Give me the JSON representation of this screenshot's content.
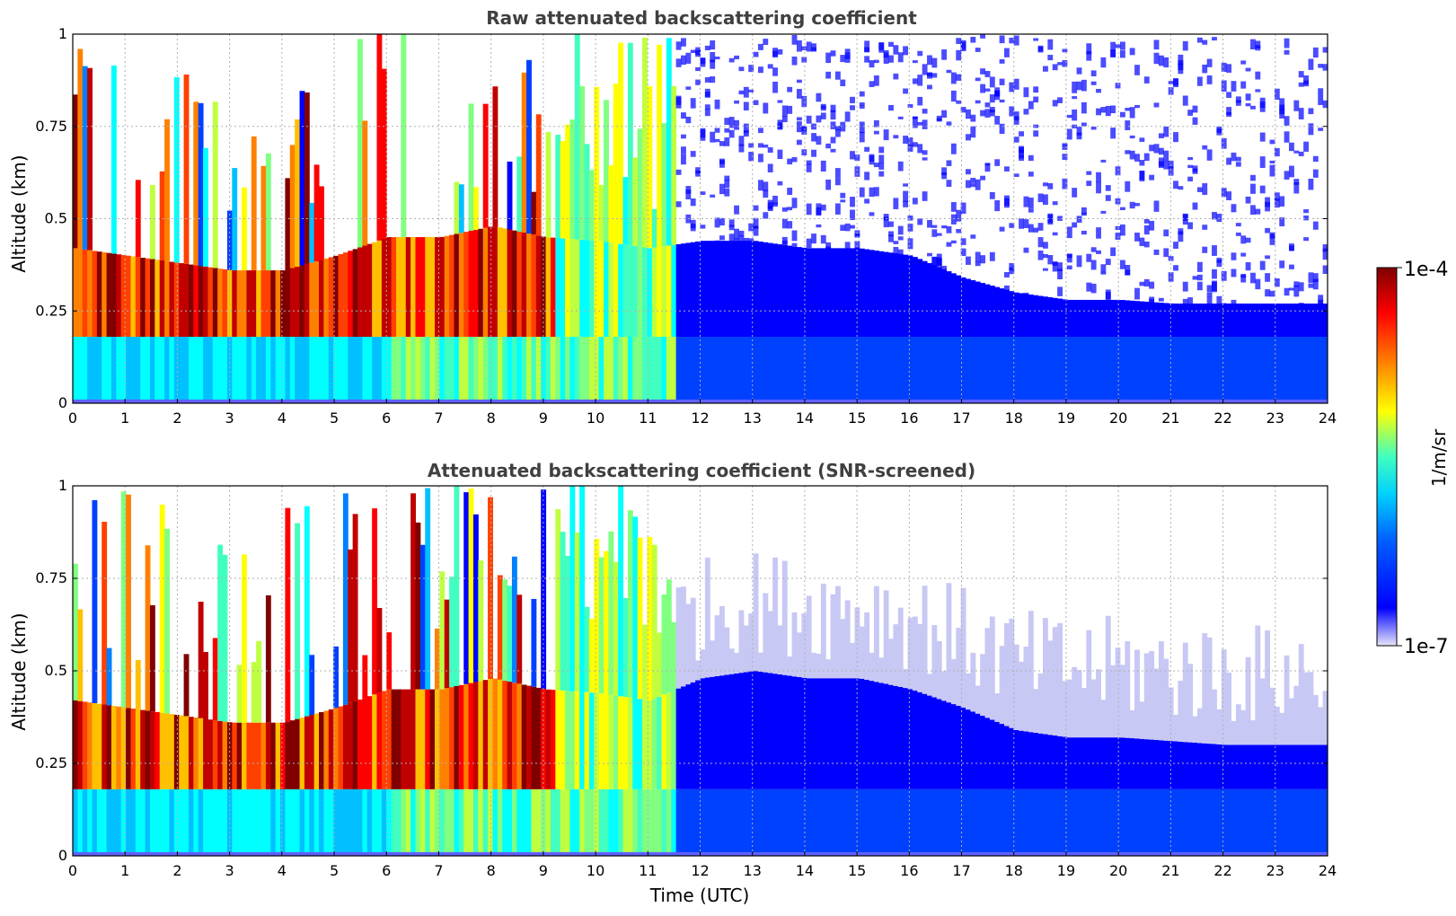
{
  "chart_data": [
    {
      "type": "heatmap",
      "title": "Raw attenuated backscattering coefficient",
      "xlabel": "",
      "ylabel": "Altitude (km)",
      "xlim": [
        0,
        24
      ],
      "ylim": [
        0,
        1
      ],
      "x_ticks": [
        "0",
        "1",
        "2",
        "3",
        "4",
        "5",
        "6",
        "7",
        "8",
        "9",
        "10",
        "11",
        "12",
        "13",
        "14",
        "15",
        "16",
        "17",
        "18",
        "19",
        "20",
        "21",
        "22",
        "23",
        "24"
      ],
      "y_ticks": [
        "0",
        "0.25",
        "0.5",
        "0.75",
        "1"
      ],
      "grid": true,
      "screened": false,
      "layer_top_km": [
        [
          0,
          0.42
        ],
        [
          1,
          0.4
        ],
        [
          2,
          0.38
        ],
        [
          3,
          0.36
        ],
        [
          4,
          0.36
        ],
        [
          5,
          0.4
        ],
        [
          6,
          0.45
        ],
        [
          7,
          0.45
        ],
        [
          8,
          0.48
        ],
        [
          9,
          0.45
        ],
        [
          10,
          0.44
        ],
        [
          11,
          0.42
        ],
        [
          12,
          0.44
        ],
        [
          13,
          0.44
        ],
        [
          14,
          0.42
        ],
        [
          15,
          0.42
        ],
        [
          16,
          0.4
        ],
        [
          17,
          0.34
        ],
        [
          18,
          0.3
        ],
        [
          19,
          0.28
        ],
        [
          20,
          0.28
        ],
        [
          21,
          0.27
        ],
        [
          22,
          0.27
        ],
        [
          23,
          0.27
        ],
        [
          24,
          0.27
        ]
      ]
    },
    {
      "type": "heatmap",
      "title": "Attenuated backscattering coefficient (SNR-screened)",
      "xlabel": "Time (UTC)",
      "ylabel": "Altitude (km)",
      "xlim": [
        0,
        24
      ],
      "ylim": [
        0,
        1
      ],
      "x_ticks": [
        "0",
        "1",
        "2",
        "3",
        "4",
        "5",
        "6",
        "7",
        "8",
        "9",
        "10",
        "11",
        "12",
        "13",
        "14",
        "15",
        "16",
        "17",
        "18",
        "19",
        "20",
        "21",
        "22",
        "23",
        "24"
      ],
      "y_ticks": [
        "0",
        "0.25",
        "0.5",
        "0.75",
        "1"
      ],
      "grid": true,
      "screened": true,
      "layer_top_km": [
        [
          0,
          0.42
        ],
        [
          1,
          0.4
        ],
        [
          2,
          0.38
        ],
        [
          3,
          0.36
        ],
        [
          4,
          0.36
        ],
        [
          5,
          0.4
        ],
        [
          6,
          0.45
        ],
        [
          7,
          0.45
        ],
        [
          8,
          0.48
        ],
        [
          9,
          0.45
        ],
        [
          10,
          0.44
        ],
        [
          11,
          0.42
        ],
        [
          12,
          0.48
        ],
        [
          13,
          0.5
        ],
        [
          14,
          0.48
        ],
        [
          15,
          0.48
        ],
        [
          16,
          0.45
        ],
        [
          17,
          0.4
        ],
        [
          18,
          0.34
        ],
        [
          19,
          0.32
        ],
        [
          20,
          0.32
        ],
        [
          21,
          0.31
        ],
        [
          22,
          0.3
        ],
        [
          23,
          0.3
        ],
        [
          24,
          0.3
        ]
      ]
    }
  ],
  "colorbar": {
    "label": "1/m/sr",
    "max_label": "1e-4",
    "min_label": "1e-7",
    "colormap": [
      "#e6e6fa",
      "#0000ff",
      "#0080ff",
      "#00ffff",
      "#80ff80",
      "#ffff00",
      "#ff8000",
      "#ff0000",
      "#800000"
    ]
  }
}
